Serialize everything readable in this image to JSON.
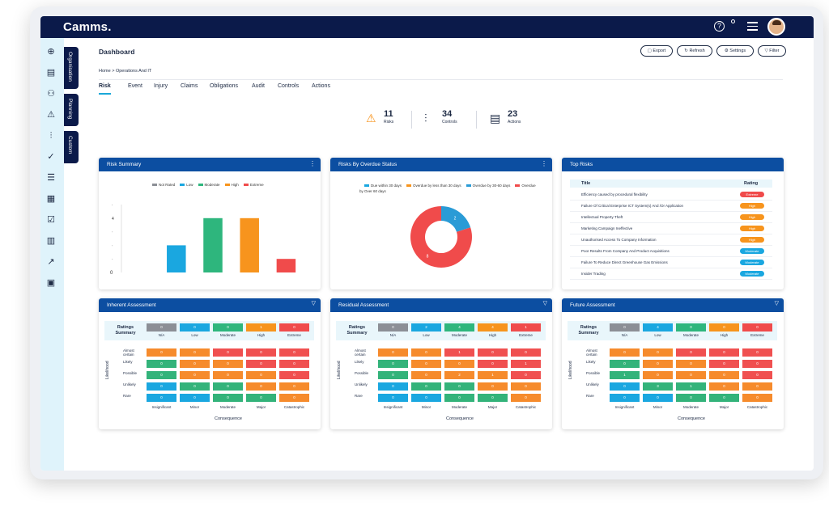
{
  "app": {
    "logo": "Camms."
  },
  "colors": {
    "navy": "#0b1a4a",
    "header_blue": "#0c4ea1",
    "accent": "#1aa7d8",
    "na": "#8c8f96",
    "low": "#1aa7e0",
    "moderate": "#2eb67d",
    "high": "#f7941d",
    "extreme": "#f04b4b",
    "orange": "#f68b2c",
    "red": "#f05050",
    "green": "#33b37a"
  },
  "sidebar": {
    "icons": [
      "add-icon",
      "document-icon",
      "users-icon",
      "warning-icon",
      "sliders-icon",
      "check-icon",
      "list-icon",
      "report-icon",
      "checklist-icon",
      "bar-chart-icon",
      "trend-icon",
      "dashboard-icon"
    ],
    "tabs": [
      "Organisation",
      "Planning",
      "Custom"
    ]
  },
  "header": {
    "title": "Dashboard",
    "breadcrumb": "Home > Operations And IT",
    "buttons": [
      "Export",
      "Refresh",
      "Settings",
      "Filter"
    ]
  },
  "tabs": [
    "Risk",
    "Event",
    "Injury",
    "Claims",
    "Obligations",
    "Audit",
    "Controls",
    "Actions"
  ],
  "stats": [
    {
      "value": "11",
      "label": "Risks"
    },
    {
      "value": "34",
      "label": "Controls"
    },
    {
      "value": "23",
      "label": "Actions"
    }
  ],
  "risk_summary": {
    "title": "Risk Summary",
    "chart_data": {
      "type": "bar",
      "categories": [
        "Not Rated",
        "Low",
        "Moderate",
        "High",
        "Extreme"
      ],
      "values": [
        0,
        2,
        4,
        4,
        1
      ],
      "ylim": [
        0,
        5
      ],
      "yticks": [
        "0",
        "",
        "",
        "",
        "4",
        ""
      ],
      "legend": "top",
      "colors": [
        "#8c8f96",
        "#1aa7e0",
        "#2eb67d",
        "#f7941d",
        "#f04b4b"
      ]
    }
  },
  "overdue": {
    "title": "Risks By Overdue Status",
    "chart_data": {
      "type": "pie",
      "categories": [
        "Due within 30 days",
        "Overdue by less than 30 days",
        "Overdue by 30-60 days",
        "Overdue by Over 60 days"
      ],
      "values": [
        0,
        0,
        2,
        8
      ],
      "labels": [
        "",
        "",
        "2",
        "8"
      ],
      "legend": "top",
      "colors": [
        "#1aa7e0",
        "#f7941d",
        "#2a9bd6",
        "#f04b4b"
      ]
    }
  },
  "top_risks": {
    "title": "Top Risks",
    "col_title": "Title",
    "col_rating": "Rating",
    "rows": [
      {
        "title": "Efficiency caused by procedural flexibility",
        "rating": "Extreme",
        "color": "#f04b4b"
      },
      {
        "title": "Failure Of Critical Enterprise ICT System(s) And /Or Application",
        "rating": "High",
        "color": "#f7941d"
      },
      {
        "title": "Intellectual Property Theft",
        "rating": "High",
        "color": "#f7941d"
      },
      {
        "title": "Marketing Campaign Ineffective",
        "rating": "High",
        "color": "#f7941d"
      },
      {
        "title": "Unauthorised Access To Company Information",
        "rating": "High",
        "color": "#f7941d"
      },
      {
        "title": "Poor Results From Company And Product Acquisitions",
        "rating": "Moderate",
        "color": "#1aa7e0"
      },
      {
        "title": "Failure To Reduce Direct Greenhouse Gas Emissions",
        "rating": "Moderate",
        "color": "#1aa7e0"
      },
      {
        "title": "Insider Trading",
        "rating": "Moderate",
        "color": "#1aa7e0"
      }
    ]
  },
  "assessment_common": {
    "ratings_title": "Ratings Summary",
    "rating_labels": [
      "N/A",
      "Low",
      "Moderate",
      "High",
      "Extreme"
    ],
    "likelihood": [
      "Almost certain",
      "Likely",
      "Possible",
      "Unlikely",
      "Rare"
    ],
    "consequence": [
      "Insignificant",
      "Minor",
      "Moderate",
      "Major",
      "Catastrophic"
    ],
    "y_label": "Likelihood",
    "x_label": "Consequence",
    "matrix_colors": [
      [
        "#f68b2c",
        "#f68b2c",
        "#f05050",
        "#f05050",
        "#f05050"
      ],
      [
        "#33b37a",
        "#f68b2c",
        "#f68b2c",
        "#f05050",
        "#f05050"
      ],
      [
        "#33b37a",
        "#f68b2c",
        "#f68b2c",
        "#f68b2c",
        "#f05050"
      ],
      [
        "#1aa7e0",
        "#33b37a",
        "#33b37a",
        "#f68b2c",
        "#f68b2c"
      ],
      [
        "#1aa7e0",
        "#1aa7e0",
        "#33b37a",
        "#33b37a",
        "#f68b2c"
      ]
    ]
  },
  "assessments": [
    {
      "title": "Inherent Assessment",
      "summary": [
        "0",
        "0",
        "0",
        "1",
        "0"
      ],
      "matrix": [
        [
          "0",
          "0",
          "0",
          "0",
          "0"
        ],
        [
          "0",
          "0",
          "0",
          "0",
          "0"
        ],
        [
          "0",
          "0",
          "0",
          "0",
          "0"
        ],
        [
          "0",
          "0",
          "0",
          "0",
          "0"
        ],
        [
          "0",
          "0",
          "0",
          "0",
          "0"
        ]
      ]
    },
    {
      "title": "Residual Assessment",
      "summary": [
        "0",
        "2",
        "4",
        "4",
        "1"
      ],
      "matrix": [
        [
          "0",
          "0",
          "1",
          "0",
          "0"
        ],
        [
          "0",
          "0",
          "0",
          "0",
          "1"
        ],
        [
          "0",
          "0",
          "2",
          "1",
          "0"
        ],
        [
          "0",
          "0",
          "0",
          "0",
          "0"
        ],
        [
          "0",
          "0",
          "0",
          "0",
          "0"
        ]
      ]
    },
    {
      "title": "Future Assessment",
      "summary": [
        "0",
        "4",
        "0",
        "0",
        "0"
      ],
      "matrix": [
        [
          "0",
          "0",
          "0",
          "0",
          "0"
        ],
        [
          "0",
          "0",
          "0",
          "0",
          "0"
        ],
        [
          "1",
          "0",
          "0",
          "0",
          "0"
        ],
        [
          "0",
          "3",
          "1",
          "0",
          "0"
        ],
        [
          "0",
          "0",
          "0",
          "0",
          "0"
        ]
      ]
    }
  ]
}
